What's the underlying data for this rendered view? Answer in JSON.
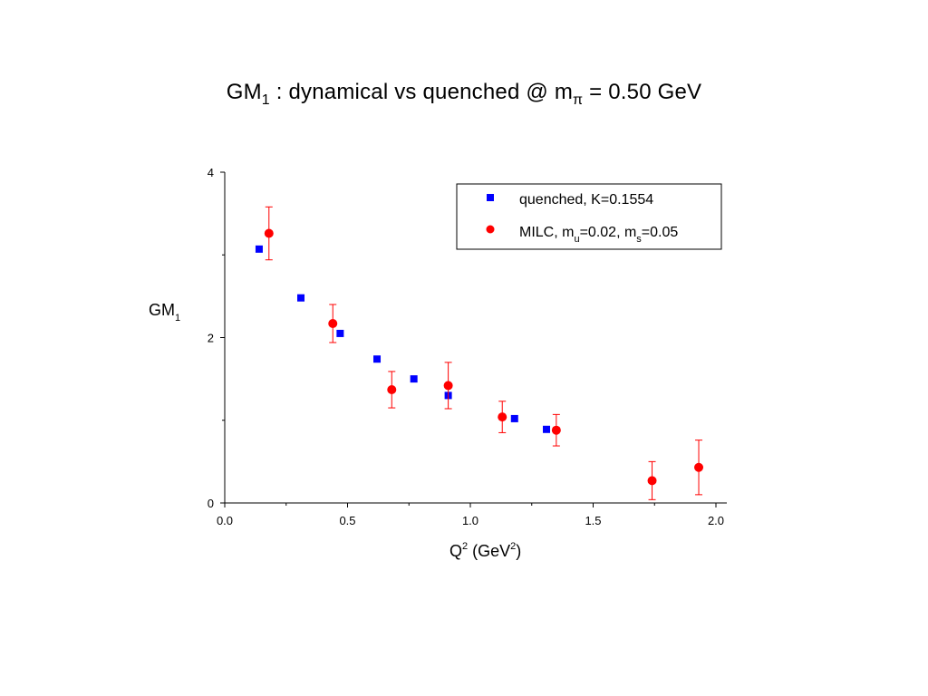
{
  "title": {
    "main": "GM",
    "main_sub": "1",
    "rest": " :  dynamical vs quenched  @  m",
    "pi_sub": "π",
    "value": "  = 0.50 GeV"
  },
  "chart_data": {
    "type": "scatter",
    "xlabel": {
      "base": "Q",
      "sup": "2",
      "mid": " (GeV",
      "sup2": "2",
      "end": ")"
    },
    "ylabel": {
      "base": "GM",
      "sub": "1"
    },
    "xlim": [
      0,
      2
    ],
    "ylim": [
      0,
      4
    ],
    "xticks": [
      0.0,
      0.5,
      1.0,
      1.5,
      2.0
    ],
    "xtick_labels": [
      "0.0",
      "0.5",
      "1.0",
      "1.5",
      "2.0"
    ],
    "yticks": [
      0,
      2,
      4
    ],
    "ytick_labels": [
      "0",
      "2",
      "4"
    ],
    "grid": false,
    "legend_position": "top-right",
    "series": [
      {
        "name": "quenched, K=0.1554",
        "marker": "square",
        "color": "#0000ff",
        "x": [
          0.14,
          0.31,
          0.47,
          0.62,
          0.77,
          0.91,
          1.18,
          1.31
        ],
        "y": [
          3.07,
          2.48,
          2.05,
          1.74,
          1.5,
          1.3,
          1.02,
          0.89
        ]
      },
      {
        "name_parts": {
          "a": "MILC, m",
          "b": "u",
          "c": "=0.02, m",
          "d": "s",
          "e": "=0.05"
        },
        "marker": "circle",
        "color": "#ff0000",
        "x": [
          0.18,
          0.44,
          0.68,
          0.91,
          1.13,
          1.35,
          1.74,
          1.93
        ],
        "y": [
          3.26,
          2.17,
          1.37,
          1.42,
          1.04,
          0.88,
          0.27,
          0.43
        ],
        "err_low": [
          0.32,
          0.23,
          0.22,
          0.28,
          0.19,
          0.19,
          0.23,
          0.33
        ],
        "err_high": [
          0.32,
          0.23,
          0.22,
          0.28,
          0.19,
          0.19,
          0.23,
          0.33
        ]
      }
    ]
  }
}
